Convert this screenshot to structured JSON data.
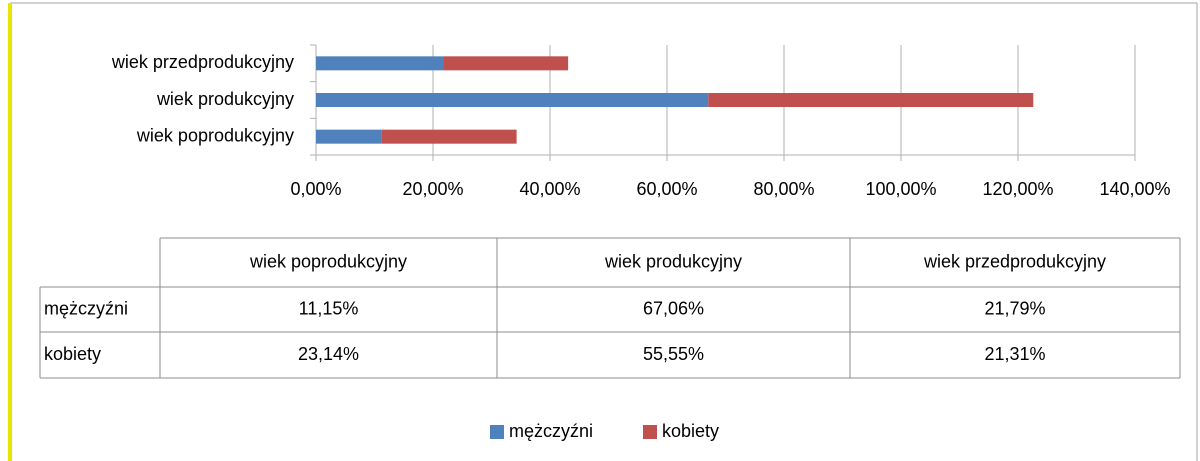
{
  "chart_data": {
    "type": "stacked-bar-horizontal",
    "categories": [
      "wiek poprodukcyjny",
      "wiek produkcyjny",
      "wiek przedprodukcyjny"
    ],
    "series": [
      {
        "name": "mężczyźni",
        "color": "#4f81bd",
        "values": [
          11.15,
          67.06,
          21.79
        ],
        "value_labels": [
          "11,15%",
          "67,06%",
          "21,79%"
        ]
      },
      {
        "name": "kobiety",
        "color": "#c0504d",
        "values": [
          23.14,
          55.55,
          21.31
        ],
        "value_labels": [
          "23,14%",
          "55,55%",
          "21,31%"
        ]
      }
    ],
    "xlim": [
      0,
      140
    ],
    "xticks": [
      {
        "value": 0,
        "label": "0,00%"
      },
      {
        "value": 20,
        "label": "20,00%"
      },
      {
        "value": 40,
        "label": "40,00%"
      },
      {
        "value": 60,
        "label": "60,00%"
      },
      {
        "value": 80,
        "label": "80,00%"
      },
      {
        "value": 100,
        "label": "100,00%"
      },
      {
        "value": 120,
        "label": "120,00%"
      },
      {
        "value": 140,
        "label": "140,00%"
      }
    ],
    "grid": true,
    "legend": "bottom"
  }
}
